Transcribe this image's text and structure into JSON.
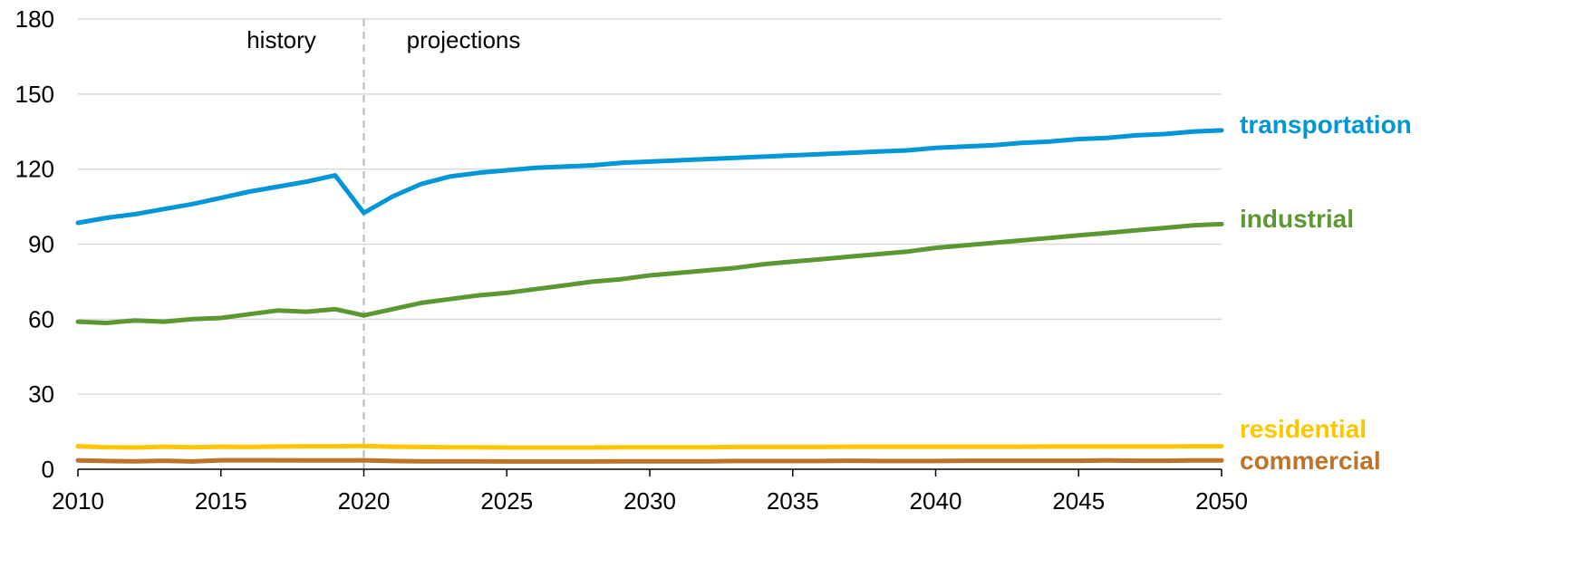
{
  "chart_data": {
    "type": "line",
    "title": "",
    "xlabel": "",
    "ylabel": "",
    "xlim": [
      2010,
      2050
    ],
    "ylim": [
      0,
      180
    ],
    "x_ticks": [
      2010,
      2015,
      2020,
      2025,
      2030,
      2035,
      2040,
      2045,
      2050
    ],
    "y_ticks": [
      0,
      30,
      60,
      90,
      120,
      150,
      180
    ],
    "grid": "horizontal",
    "divider": {
      "x": 2020,
      "left_label": "history",
      "right_label": "projections"
    },
    "series": [
      {
        "name": "transportation",
        "color": "#0096D7",
        "x": [
          2010,
          2011,
          2012,
          2013,
          2014,
          2015,
          2016,
          2017,
          2018,
          2019,
          2020,
          2021,
          2022,
          2023,
          2024,
          2025,
          2026,
          2027,
          2028,
          2029,
          2030,
          2031,
          2032,
          2033,
          2034,
          2035,
          2036,
          2037,
          2038,
          2039,
          2040,
          2041,
          2042,
          2043,
          2044,
          2045,
          2046,
          2047,
          2048,
          2049,
          2050
        ],
        "y": [
          98.5,
          100.5,
          102,
          104,
          106,
          108.5,
          111,
          113,
          115,
          117.5,
          102.5,
          109,
          114,
          117,
          118.5,
          119.5,
          120.5,
          121,
          121.5,
          122.5,
          123,
          123.5,
          124,
          124.5,
          125,
          125.5,
          126,
          126.5,
          127,
          127.5,
          128.5,
          129,
          129.5,
          130.5,
          131,
          132,
          132.5,
          133.5,
          134,
          135,
          135.5
        ]
      },
      {
        "name": "industrial",
        "color": "#5D9732",
        "x": [
          2010,
          2011,
          2012,
          2013,
          2014,
          2015,
          2016,
          2017,
          2018,
          2019,
          2020,
          2021,
          2022,
          2023,
          2024,
          2025,
          2026,
          2027,
          2028,
          2029,
          2030,
          2031,
          2032,
          2033,
          2034,
          2035,
          2036,
          2037,
          2038,
          2039,
          2040,
          2041,
          2042,
          2043,
          2044,
          2045,
          2046,
          2047,
          2048,
          2049,
          2050
        ],
        "y": [
          59,
          58.5,
          59.5,
          59,
          60,
          60.5,
          62,
          63.5,
          63,
          64,
          61.5,
          64,
          66.5,
          68,
          69.5,
          70.5,
          72,
          73.5,
          75,
          76,
          77.5,
          78.5,
          79.5,
          80.5,
          82,
          83,
          84,
          85,
          86,
          87,
          88.5,
          89.5,
          90.5,
          91.5,
          92.5,
          93.5,
          94.5,
          95.5,
          96.5,
          97.5,
          98
        ]
      },
      {
        "name": "residential",
        "color": "#FFC600",
        "x": [
          2010,
          2011,
          2012,
          2013,
          2014,
          2015,
          2016,
          2017,
          2018,
          2019,
          2020,
          2021,
          2022,
          2023,
          2024,
          2025,
          2026,
          2027,
          2028,
          2029,
          2030,
          2031,
          2032,
          2033,
          2034,
          2035,
          2036,
          2037,
          2038,
          2039,
          2040,
          2041,
          2042,
          2043,
          2044,
          2045,
          2046,
          2047,
          2048,
          2049,
          2050
        ],
        "y": [
          9.2,
          8.8,
          8.7,
          9,
          8.8,
          9,
          8.9,
          9.1,
          9.2,
          9.2,
          9.3,
          9,
          8.9,
          8.8,
          8.8,
          8.7,
          8.7,
          8.7,
          8.7,
          8.8,
          8.8,
          8.8,
          8.8,
          8.9,
          8.9,
          8.9,
          8.9,
          9,
          9,
          9,
          9,
          9,
          9,
          9,
          9.1,
          9.1,
          9.1,
          9.1,
          9.1,
          9.2,
          9.2
        ]
      },
      {
        "name": "commercial",
        "color": "#BD732A",
        "x": [
          2010,
          2011,
          2012,
          2013,
          2014,
          2015,
          2016,
          2017,
          2018,
          2019,
          2020,
          2021,
          2022,
          2023,
          2024,
          2025,
          2026,
          2027,
          2028,
          2029,
          2030,
          2031,
          2032,
          2033,
          2034,
          2035,
          2036,
          2037,
          2038,
          2039,
          2040,
          2041,
          2042,
          2043,
          2044,
          2045,
          2046,
          2047,
          2048,
          2049,
          2050
        ],
        "y": [
          3.5,
          3.3,
          3.2,
          3.4,
          3.1,
          3.6,
          3.6,
          3.6,
          3.5,
          3.5,
          3.6,
          3.3,
          3.2,
          3.2,
          3.2,
          3.1,
          3.1,
          3.1,
          3.1,
          3.2,
          3.2,
          3.2,
          3.2,
          3.3,
          3.3,
          3.3,
          3.3,
          3.4,
          3.3,
          3.3,
          3.3,
          3.4,
          3.4,
          3.4,
          3.4,
          3.4,
          3.5,
          3.4,
          3.4,
          3.5,
          3.5
        ]
      }
    ]
  }
}
